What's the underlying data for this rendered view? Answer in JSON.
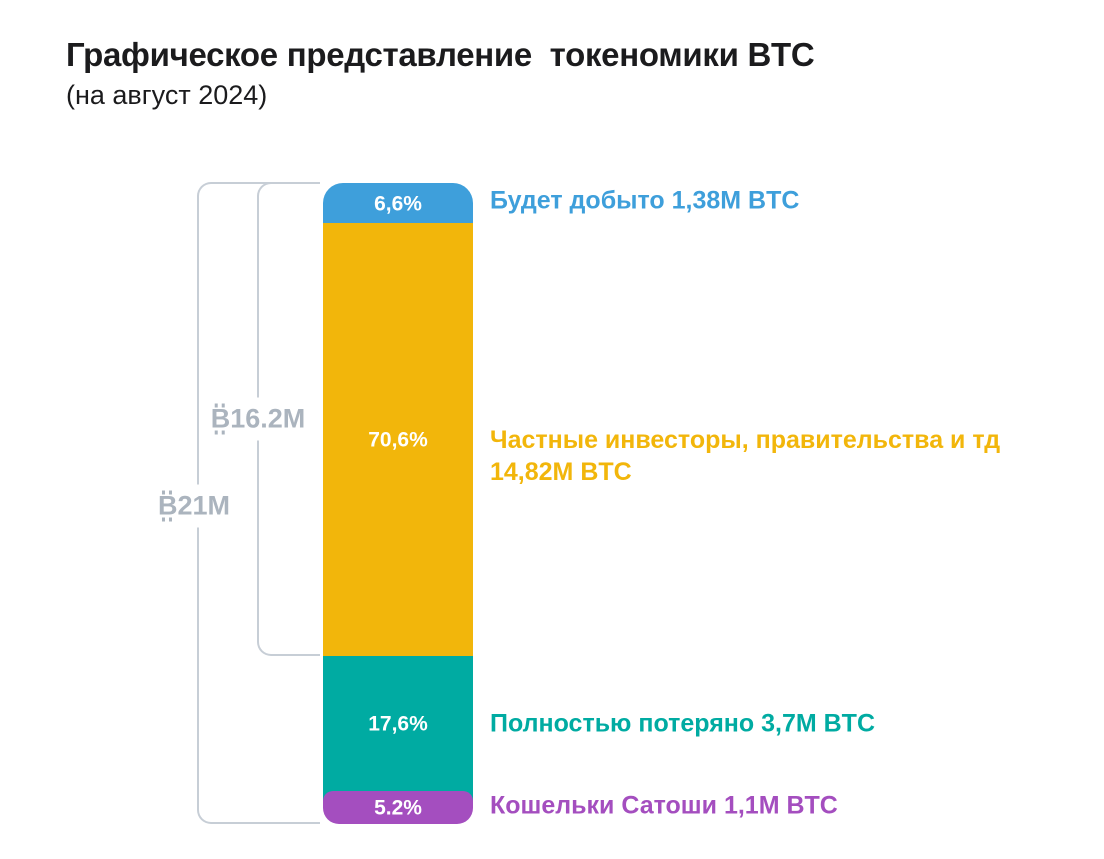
{
  "header": {
    "title": "Графическое представление  токеномики BTC",
    "subtitle": "(на август 2024)"
  },
  "chart_data": {
    "type": "bar",
    "orientation": "vertical-stacked",
    "title": "Графическое представление токеномики BTC",
    "subtitle": "(на август 2024)",
    "unit": "M BTC",
    "total_value_m_btc": 21,
    "axis": "none",
    "grid": false,
    "legend_position": "right-of-segments",
    "segments": [
      {
        "id": "to-be-mined",
        "percent": 6.6,
        "percent_label": "6,6%",
        "value_m_btc": 1.38,
        "label": "Будет добыто 1,38M BTC",
        "color": "#3E9FDB"
      },
      {
        "id": "private-investors",
        "percent": 70.6,
        "percent_label": "70,6%",
        "value_m_btc": 14.82,
        "label_line1": "Частные инвесторы, правительства и тд",
        "label_line2": "14,82M BTC",
        "color": "#F2B60B"
      },
      {
        "id": "fully-lost",
        "percent": 17.6,
        "percent_label": "17,6%",
        "value_m_btc": 3.7,
        "label": "Полностью потеряно 3,7M BTC",
        "color": "#00ABA2"
      },
      {
        "id": "satoshi-wallets",
        "percent": 5.2,
        "percent_label": "5.2%",
        "value_m_btc": 1.1,
        "label": "Кошельки Сатоши 1,1M BTC",
        "color": "#A44EBF"
      }
    ],
    "brackets": [
      {
        "label": "₿16.2M",
        "symbol_letter": "B",
        "amount": "16.2M",
        "value_m_btc": 16.2,
        "spans_segments": [
          "to-be-mined",
          "private-investors"
        ]
      },
      {
        "label": "₿21M",
        "symbol_letter": "B",
        "amount": "21M",
        "value_m_btc": 21,
        "spans_segments": [
          "to-be-mined",
          "private-investors",
          "fully-lost",
          "satoshi-wallets"
        ]
      }
    ]
  },
  "colors": {
    "blue": "#3E9FDB",
    "yellow": "#F2B60B",
    "teal": "#00ABA2",
    "purple": "#A44EBF",
    "bracket_line": "#C7CED6",
    "bracket_text": "#ABB4BE",
    "title_text": "#1B1B1D",
    "percent_text": "#FFFFFF",
    "background": "#FFFFFF"
  }
}
